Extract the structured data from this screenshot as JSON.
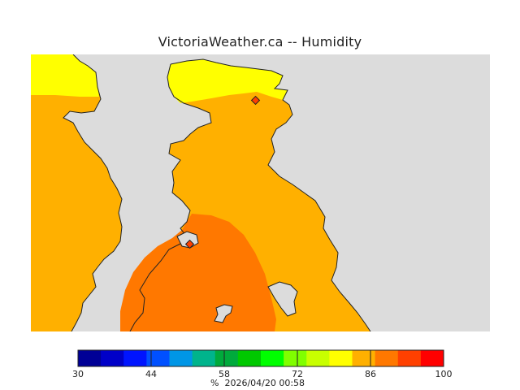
{
  "title": "VictoriaWeather.ca -- Humidity",
  "colors": {
    "land_bg": "#dcdcdc",
    "coast": "#222222",
    "band_72_79": "#ffff00",
    "band_79_86": "#ffb000",
    "band_86_93": "#ff7800"
  },
  "scale": {
    "min": 30,
    "max": 100,
    "colors": [
      "#000096",
      "#0000c8",
      "#0014ff",
      "#0050ff",
      "#0096e6",
      "#00b48c",
      "#00aa3c",
      "#00c800",
      "#00ff00",
      "#80ff00",
      "#c8ff00",
      "#ffff00",
      "#ffb000",
      "#ff7800",
      "#ff4000",
      "#ff0000"
    ],
    "tick_labels": [
      {
        "text": "30",
        "value": 30
      },
      {
        "text": "44",
        "value": 44
      },
      {
        "text": "58",
        "value": 58
      },
      {
        "text": "72",
        "value": 72
      },
      {
        "text": "86",
        "value": 86
      },
      {
        "text": "100",
        "value": 100
      }
    ]
  },
  "footer": {
    "unit": "%",
    "timestamp": "2026/04/20 00:58"
  },
  "stations": [
    "station-north",
    "station-victoria"
  ]
}
